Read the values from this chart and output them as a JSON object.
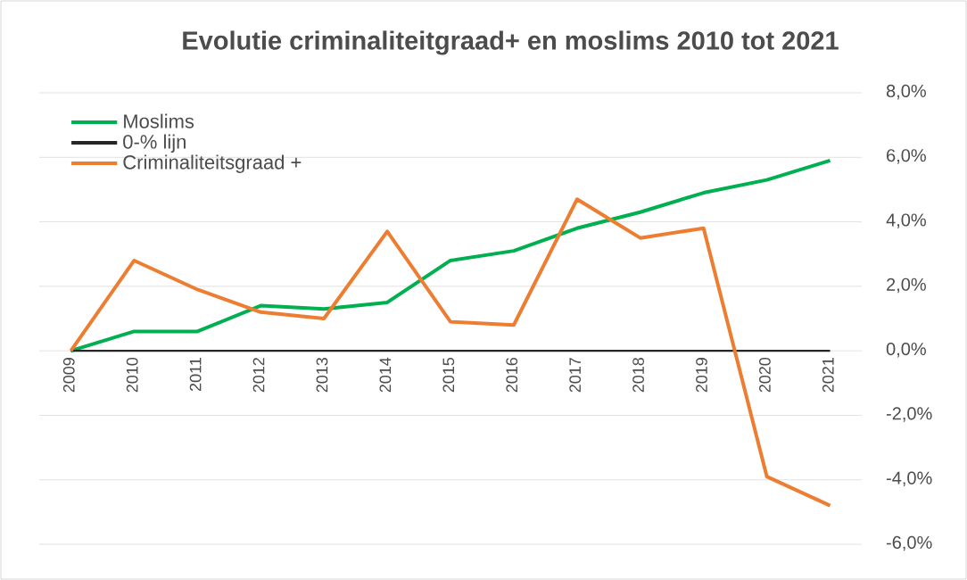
{
  "chart_data": {
    "type": "line",
    "title": "Evolutie criminaliteitgraad+  en moslims 2010 tot 2021",
    "categories": [
      "2009",
      "2010",
      "2011",
      "2012",
      "2013",
      "2014",
      "2015",
      "2016",
      "2017",
      "2018",
      "2019",
      "2020",
      "2021"
    ],
    "series": [
      {
        "name": "Moslims",
        "color": "#00b050",
        "values": [
          0,
          0.6,
          0.6,
          1.4,
          1.3,
          1.5,
          2.8,
          3.1,
          3.8,
          4.3,
          4.9,
          5.3,
          5.9
        ]
      },
      {
        "name": "0-% lijn",
        "color": "#262626",
        "values": [
          0,
          0,
          0,
          0,
          0,
          0,
          0,
          0,
          0,
          0,
          0,
          0,
          0
        ]
      },
      {
        "name": "Criminaliteitsgraad +",
        "color": "#ed7d31",
        "values": [
          0,
          2.8,
          1.9,
          1.2,
          1.0,
          3.7,
          0.9,
          0.8,
          4.7,
          3.5,
          3.8,
          -3.9,
          -4.8
        ]
      }
    ],
    "ylim": [
      -6,
      8
    ],
    "yticks": [
      {
        "value": -6,
        "label": "-6,0%"
      },
      {
        "value": -4,
        "label": "-4,0%"
      },
      {
        "value": -2,
        "label": "-2,0%"
      },
      {
        "value": 0,
        "label": "0,0%"
      },
      {
        "value": 2,
        "label": "2,0%"
      },
      {
        "value": 4,
        "label": "4,0%"
      },
      {
        "value": 6,
        "label": "6,0%"
      },
      {
        "value": 8,
        "label": "8,0%"
      }
    ],
    "grid": "y",
    "legend": "top left",
    "marker": "none",
    "line_style": "solid"
  }
}
